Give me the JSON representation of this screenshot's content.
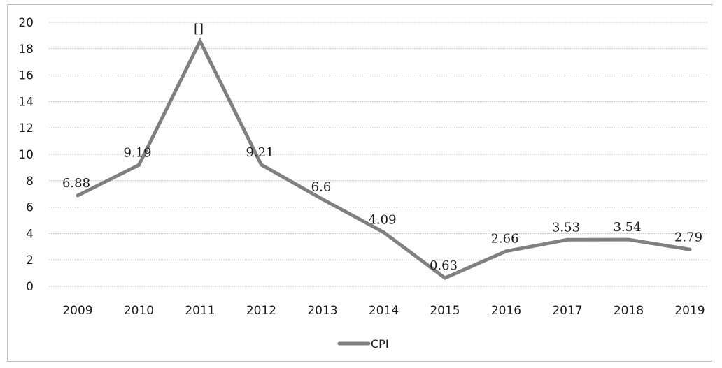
{
  "chart_data": {
    "type": "line",
    "title": "",
    "xlabel": "",
    "ylabel": "",
    "categories": [
      "2009",
      "2010",
      "2011",
      "2012",
      "2013",
      "2014",
      "2015",
      "2016",
      "2017",
      "2018",
      "2019"
    ],
    "series": [
      {
        "name": "CPI",
        "values": [
          6.88,
          9.19,
          18.58,
          9.21,
          6.6,
          4.09,
          0.63,
          2.66,
          3.53,
          3.54,
          2.79
        ],
        "data_labels": [
          "6.88",
          "9.19",
          "[]",
          "9.21",
          "6.6",
          "4.09",
          "0.63",
          "2.66",
          "3.53",
          "3.54",
          "2.79"
        ],
        "color": "#808080"
      }
    ],
    "ylim": [
      0,
      20
    ],
    "yticks": [
      "0",
      "2",
      "4",
      "6",
      "8",
      "10",
      "12",
      "14",
      "16",
      "18",
      "20"
    ],
    "grid": true,
    "legend_position": "bottom"
  }
}
